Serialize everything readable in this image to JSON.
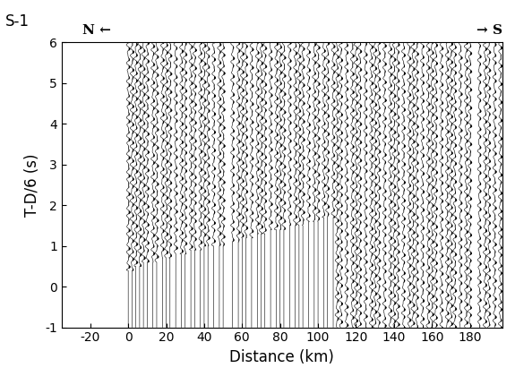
{
  "chart_data": {
    "type": "seismic_section",
    "title": "S-1",
    "xlabel": "Distance (km)",
    "ylabel": "T-D/6 (s)",
    "direction_labels": [
      "N ←",
      "→ S"
    ],
    "xlim": [
      -35,
      197
    ],
    "ylim": [
      -1,
      6
    ],
    "xticks": [
      -20,
      0,
      20,
      40,
      60,
      80,
      100,
      120,
      140,
      160,
      180
    ],
    "yticks": [
      -1,
      0,
      1,
      2,
      3,
      4,
      5,
      6
    ],
    "color": "#000000",
    "traces": {
      "x": [
        0,
        2,
        4,
        6,
        8,
        10,
        13,
        15,
        18,
        20,
        22,
        25,
        28,
        30,
        33,
        35,
        38,
        40,
        42,
        45,
        48,
        50,
        55,
        58,
        60,
        62,
        65,
        68,
        70,
        72,
        75,
        78,
        80,
        82,
        85,
        88,
        90,
        92,
        95,
        98,
        100,
        103,
        105,
        108,
        110,
        112,
        115,
        118,
        120,
        122,
        125,
        128,
        130,
        132,
        135,
        138,
        140,
        142,
        145,
        148,
        150,
        152,
        155,
        158,
        160,
        162,
        165,
        168,
        170,
        172,
        175,
        178,
        180,
        185,
        188,
        190,
        193,
        196
      ],
      "onset": [
        0.4,
        0.4,
        0.5,
        0.5,
        0.6,
        0.6,
        0.6,
        0.6,
        0.7,
        0.7,
        0.7,
        0.8,
        0.8,
        0.8,
        0.9,
        0.9,
        0.9,
        1.0,
        1.0,
        1.0,
        1.0,
        1.0,
        1.1,
        1.1,
        1.2,
        1.2,
        1.2,
        1.3,
        1.3,
        1.3,
        1.4,
        1.4,
        1.4,
        1.4,
        1.5,
        1.5,
        1.5,
        1.5,
        1.6,
        1.6,
        1.6,
        1.7,
        1.7,
        1.7,
        -1,
        -1,
        -1,
        -1,
        -1,
        -1,
        -1,
        -1,
        -1,
        -1,
        -1,
        -1,
        -1,
        -1,
        -1,
        -1,
        -1,
        -1,
        -1,
        -1,
        -1,
        -1,
        -1,
        -1,
        -1,
        -1,
        -1,
        -1,
        -1,
        -1,
        -1,
        -1,
        -1,
        -1
      ]
    }
  }
}
